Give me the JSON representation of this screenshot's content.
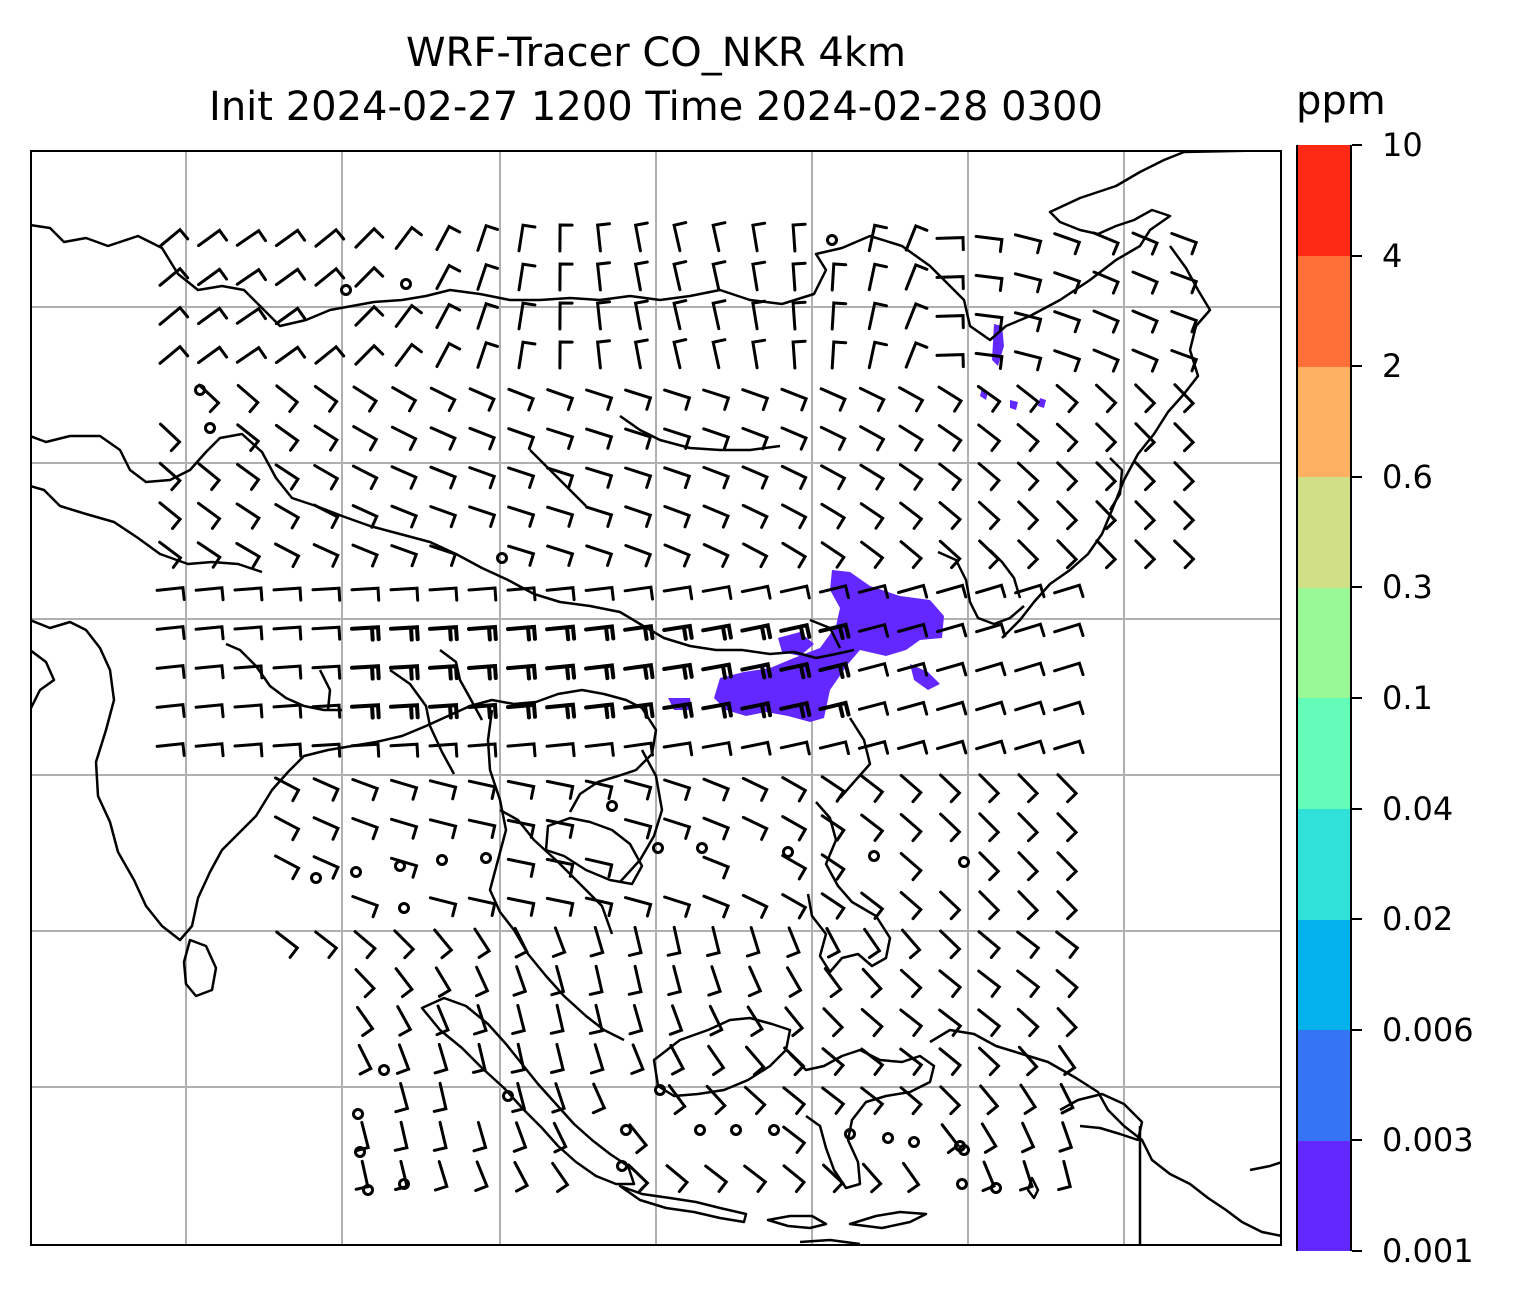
{
  "title": {
    "line1": "WRF-Tracer CO_NKR 4km",
    "line2": "Init 2024-02-27 1200 Time 2024-02-28 0300"
  },
  "colorbar": {
    "unit": "ppm",
    "levels": [
      "0.001",
      "0.003",
      "0.006",
      "0.02",
      "0.04",
      "0.1",
      "0.3",
      "0.6",
      "2",
      "4",
      "10"
    ],
    "colors": [
      "#6328ff",
      "#3575f5",
      "#03b1ec",
      "#2fe1d9",
      "#64fcb9",
      "#99f996",
      "#d1e087",
      "#feb162",
      "#ff7038",
      "#ff2a15"
    ]
  },
  "map": {
    "projection": "Mercator",
    "extent_lon": [
      60,
      140
    ],
    "extent_lat": [
      -10,
      55
    ],
    "grid": true,
    "gridline_color": "#b0b0b0",
    "coastline_color": "#000000",
    "tracer_color": "#6328ff",
    "wind_barbs": true
  }
}
